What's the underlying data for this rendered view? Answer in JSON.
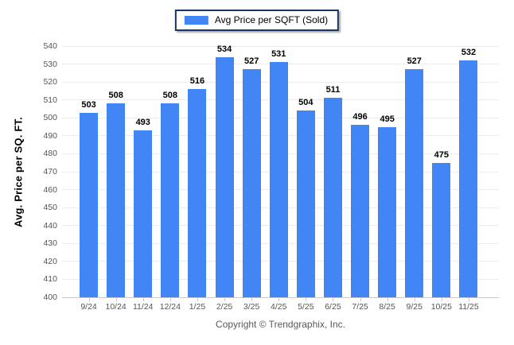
{
  "chart_data": {
    "type": "bar",
    "title": "",
    "legend": "Avg Price per SQFT (Sold)",
    "ylabel": "Avg. Price per SQ. FT.",
    "xlabel": "",
    "categories": [
      "9/24",
      "10/24",
      "11/24",
      "12/24",
      "1/25",
      "2/25",
      "3/25",
      "4/25",
      "5/25",
      "6/25",
      "7/25",
      "8/25",
      "9/25",
      "10/25",
      "11/25"
    ],
    "values": [
      503,
      508,
      493,
      508,
      516,
      534,
      527,
      531,
      504,
      511,
      496,
      495,
      527,
      475,
      532
    ],
    "ylim": [
      400,
      540
    ],
    "ytick_step": 10,
    "grid": true,
    "legend_position": "top-center",
    "bar_color": "#4285F4"
  },
  "footer": {
    "copyright": "Copyright © Trendgraphix, Inc."
  },
  "colors": {
    "bar": "#4285F4",
    "legend_border": "#17375E",
    "grid": "#ececec",
    "axis": "#c9c9c9",
    "tick_label": "#555555",
    "value_label": "#000000",
    "footer_text": "#595959",
    "background": "#ffffff"
  }
}
